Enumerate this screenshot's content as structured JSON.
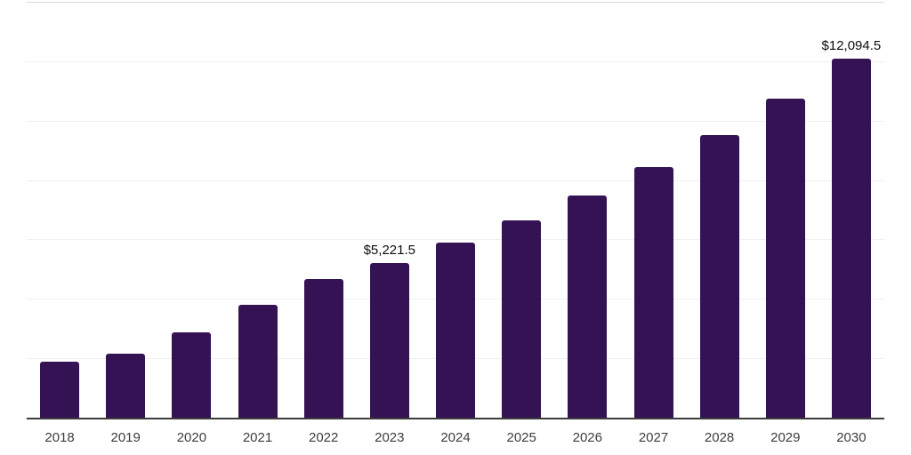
{
  "chart_data": {
    "type": "bar",
    "title": "",
    "xlabel": "",
    "ylabel": "",
    "categories": [
      "2018",
      "2019",
      "2020",
      "2021",
      "2022",
      "2023",
      "2024",
      "2025",
      "2026",
      "2027",
      "2028",
      "2029",
      "2030"
    ],
    "values": [
      1890,
      2155,
      2880,
      3815,
      4665,
      5221.5,
      5887.3,
      6637.9,
      7484.3,
      8438.7,
      9514.8,
      10728.1,
      12094.5
    ],
    "annotations": [
      {
        "category": "2023",
        "text": "$5,221.5"
      },
      {
        "category": "2030",
        "text": "$12,094.5"
      }
    ],
    "ylim": [
      0,
      14000
    ],
    "gridline_step": 2000,
    "grid": true,
    "legend": false,
    "y_tick_labels_visible": false
  },
  "colors": {
    "bar": "#341254",
    "axis_line": "#3c3c3c",
    "gridline": "#f0f0f0",
    "top_gridline": "#d9d9d9",
    "tick_label_text": "#3d3d3d",
    "value_label_text": "#0d0d0d",
    "background": "#ffffff"
  }
}
